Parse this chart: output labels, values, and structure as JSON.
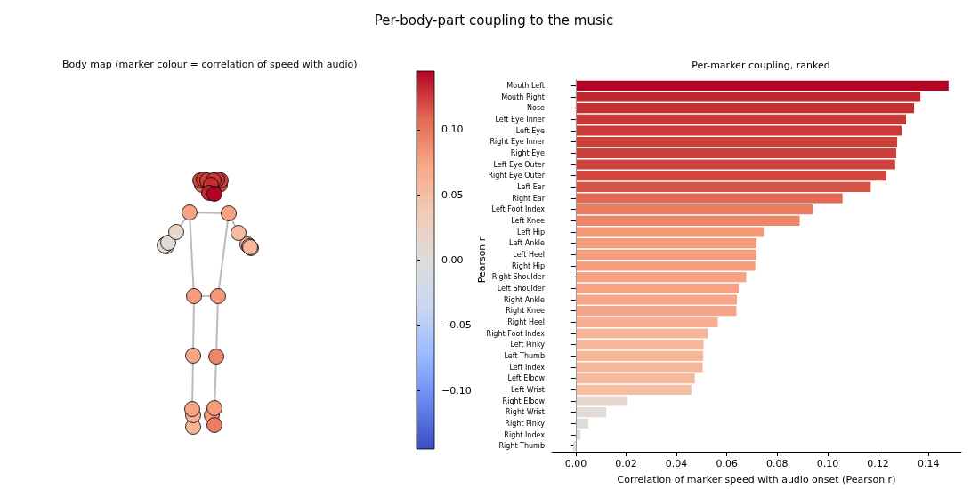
{
  "chart_data": {
    "type": "bar",
    "orientation": "horizontal",
    "title": "Per-body-part coupling to the music",
    "subtitle": "Per-marker coupling, ranked",
    "annotations": [
      "Body map (marker colour = correlation of speed with audio)"
    ],
    "xlabel": "Correlation of marker speed with audio onset (Pearson r)",
    "xlim": [
      -0.0095,
      0.153
    ],
    "xticks": [
      {
        "value": 0,
        "label": "0.00"
      },
      {
        "value": 0.02,
        "label": "0.02"
      },
      {
        "value": 0.04,
        "label": "0.04"
      },
      {
        "value": 0.06,
        "label": "0.06"
      },
      {
        "value": 0.08,
        "label": "0.08"
      },
      {
        "value": 0.1,
        "label": "0.10"
      },
      {
        "value": 0.12,
        "label": "0.12"
      },
      {
        "value": 0.14,
        "label": "0.14"
      }
    ],
    "clabel": "Pearson r",
    "clim": [
      -0.145,
      0.145
    ],
    "cticks": [
      {
        "value": -0.1,
        "label": "−0.10"
      },
      {
        "value": -0.05,
        "label": "−0.05"
      },
      {
        "value": 0,
        "label": "0.00"
      },
      {
        "value": 0.05,
        "label": "0.05"
      },
      {
        "value": 0.1,
        "label": "0.10"
      }
    ],
    "categories": [
      "Mouth Left",
      "Mouth Right",
      "Nose",
      "Left Eye Inner",
      "Left Eye",
      "Right Eye Inner",
      "Right Eye",
      "Left Eye Outer",
      "Right Eye Outer",
      "Left Ear",
      "Right Ear",
      "Left Foot Index",
      "Left Knee",
      "Left Hip",
      "Left Ankle",
      "Left Heel",
      "Right Hip",
      "Right Shoulder",
      "Left Shoulder",
      "Right Ankle",
      "Right Knee",
      "Right Heel",
      "Right Foot Index",
      "Left Pinky",
      "Left Thumb",
      "Left Index",
      "Left Elbow",
      "Left Wrist",
      "Right Elbow",
      "Right Wrist",
      "Right Pinky",
      "Right Index",
      "Right Thumb"
    ],
    "values": [
      0.148,
      0.1368,
      0.1343,
      0.1311,
      0.1294,
      0.1276,
      0.1272,
      0.1268,
      0.1233,
      0.1171,
      0.1059,
      0.0941,
      0.0889,
      0.0746,
      0.0718,
      0.0717,
      0.0713,
      0.0677,
      0.0647,
      0.064,
      0.0638,
      0.0564,
      0.0525,
      0.0508,
      0.0506,
      0.0504,
      0.0473,
      0.0459,
      0.0206,
      0.0121,
      0.005,
      0.0019,
      -0.001
    ],
    "colors": [
      "#b40426",
      "#c0282f",
      "#c32e31",
      "#c83836",
      "#ca3b37",
      "#cc403a",
      "#cc403a",
      "#cd423b",
      "#d0473d",
      "#d65244",
      "#e26952",
      "#eb7d62",
      "#ee8468",
      "#f4987a",
      "#f59c7d",
      "#f59c7d",
      "#f59d7e",
      "#f6a283",
      "#f6a385",
      "#f6a586",
      "#f6a586",
      "#f7af91",
      "#f7b497",
      "#f7b79b",
      "#f7b79b",
      "#f7b79b",
      "#f6bb9f",
      "#f5bda2",
      "#e6d7cf",
      "#e2dad5",
      "#dedcdb",
      "#dddcdc",
      "#dcdddd"
    ],
    "ref_lines": [
      {
        "axis": "x",
        "value": 0,
        "color": "#999999"
      }
    ]
  }
}
